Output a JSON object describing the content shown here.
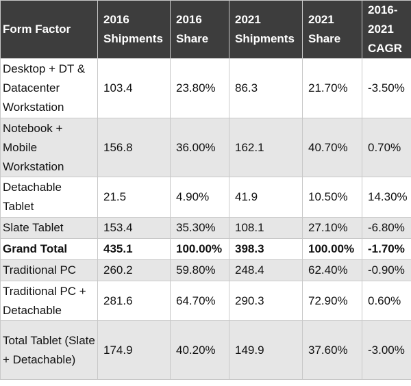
{
  "table": {
    "header": [
      "Form Factor",
      "2016 Shipments",
      "2016 Share",
      "2021 Shipments",
      "2021 Share",
      "2016-2021 CAGR"
    ],
    "rows": [
      [
        "Desktop + DT & Datacenter Workstation",
        "103.4",
        "23.80%",
        "86.3",
        "21.70%",
        "-3.50%"
      ],
      [
        "Notebook + Mobile Workstation",
        "156.8",
        "36.00%",
        "162.1",
        "40.70%",
        "0.70%"
      ],
      [
        "Detachable Tablet",
        "21.5",
        "4.90%",
        "41.9",
        "10.50%",
        "14.30%"
      ],
      [
        "Slate Tablet",
        "153.4",
        "35.30%",
        "108.1",
        "27.10%",
        "-6.80%"
      ],
      [
        "Grand Total",
        "435.1",
        "100.00%",
        "398.3",
        "100.00%",
        "-1.70%"
      ],
      [
        "Traditional PC",
        "260.2",
        "59.80%",
        "248.4",
        "62.40%",
        "-0.90%"
      ],
      [
        "Traditional PC + Detachable",
        "281.6",
        "64.70%",
        "290.3",
        "72.90%",
        "0.60%"
      ],
      [
        "Total Tablet (Slate + Detachable)",
        "174.9",
        "40.20%",
        "149.9",
        "37.60%",
        "-3.00%"
      ]
    ],
    "bold_row": 4
  }
}
